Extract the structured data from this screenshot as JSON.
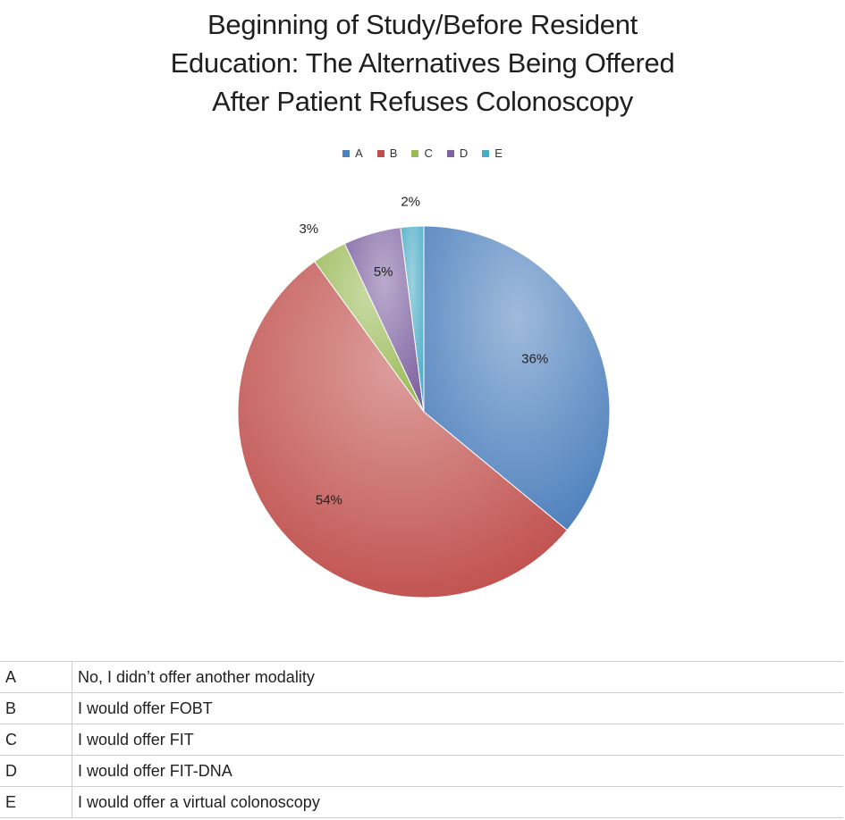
{
  "chart_data": {
    "type": "pie",
    "title_lines": [
      "Beginning of Study/Before Resident",
      "Education: The Alternatives Being Offered",
      "After Patient Refuses Colonoscopy"
    ],
    "legend_position": "top",
    "slices": [
      {
        "label": "A",
        "value": 36,
        "display": "36%",
        "color": "#4f81bd"
      },
      {
        "label": "B",
        "value": 54,
        "display": "54%",
        "color": "#c0504d"
      },
      {
        "label": "C",
        "value": 3,
        "display": "3%",
        "color": "#9bbb59"
      },
      {
        "label": "D",
        "value": 5,
        "display": "5%",
        "color": "#8064a2"
      },
      {
        "label": "E",
        "value": 2,
        "display": "2%",
        "color": "#4bacc6"
      }
    ]
  },
  "key_table": [
    {
      "code": "A",
      "text": "No, I didn’t offer another modality"
    },
    {
      "code": "B",
      "text": "I would offer  FOBT"
    },
    {
      "code": "C",
      "text": "I would offer  FIT"
    },
    {
      "code": "D",
      "text": "I would offer FIT-DNA"
    },
    {
      "code": "E",
      "text": "I would offer a virtual colonoscopy"
    }
  ]
}
